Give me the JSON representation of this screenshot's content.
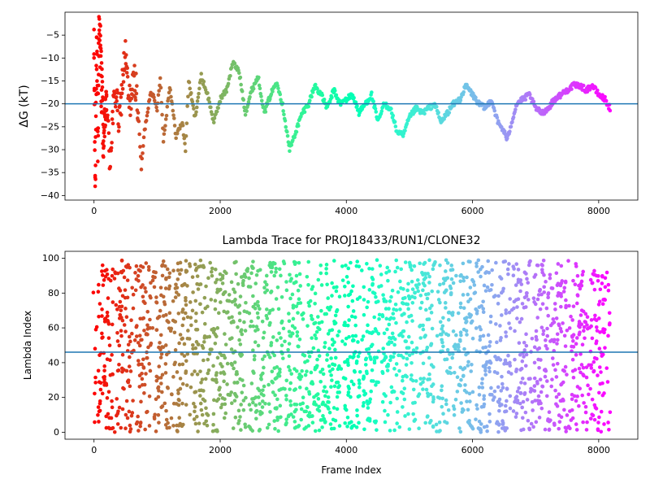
{
  "chart_data": [
    {
      "type": "scatter",
      "title": "",
      "xlabel": "",
      "ylabel": "ΔG (kT)",
      "xlim": [
        -460,
        8620
      ],
      "ylim": [
        -41,
        0
      ],
      "xticks": [
        0,
        2000,
        4000,
        6000,
        8000
      ],
      "xtick_labels": [
        "0",
        "2000",
        "4000",
        "6000",
        "8000"
      ],
      "yticks": [
        -5,
        -10,
        -15,
        -20,
        -25,
        -30,
        -35,
        -40
      ],
      "ytick_labels": [
        "−5",
        "−10",
        "−15",
        "−20",
        "−25",
        "−30",
        "−35",
        "−40"
      ],
      "reference_line_y": -20,
      "reference_line_color": "#1f77b4",
      "colormap": "rainbow (color by frame index)",
      "grid": false,
      "trace_x": [
        0,
        20,
        40,
        60,
        80,
        100,
        150,
        200,
        250,
        300,
        350,
        400,
        450,
        500,
        550,
        600,
        650,
        700,
        750,
        800,
        900,
        1000,
        1050,
        1100,
        1200,
        1300,
        1400,
        1450,
        1500,
        1600,
        1700,
        1800,
        1900,
        2000,
        2100,
        2200,
        2300,
        2400,
        2500,
        2600,
        2700,
        2800,
        2900,
        3000,
        3100,
        3200,
        3300,
        3400,
        3500,
        3600,
        3700,
        3800,
        3900,
        4000,
        4100,
        4200,
        4300,
        4400,
        4500,
        4600,
        4700,
        4800,
        4900,
        5000,
        5100,
        5200,
        5300,
        5400,
        5500,
        5600,
        5700,
        5800,
        5900,
        6000,
        6100,
        6200,
        6300,
        6400,
        6500,
        6550,
        6600,
        6700,
        6800,
        6900,
        7000,
        7100,
        7200,
        7300,
        7400,
        7500,
        7600,
        7700,
        7800,
        7900,
        8000,
        8100,
        8180
      ],
      "trace_y": [
        -10,
        -38,
        -5,
        -30,
        -1,
        -8,
        -28,
        -19,
        -33,
        -22,
        -17,
        -25,
        -15,
        -9,
        -20,
        -18,
        -14,
        -22,
        -34,
        -26,
        -17,
        -21,
        -14,
        -28,
        -16,
        -27,
        -24,
        -30,
        -15,
        -23,
        -14,
        -18,
        -24,
        -19,
        -17,
        -11,
        -13,
        -22,
        -17,
        -14,
        -22,
        -18,
        -15,
        -21,
        -30,
        -26,
        -22,
        -20,
        -16,
        -18,
        -21,
        -17,
        -20,
        -19,
        -18,
        -22,
        -20,
        -18,
        -24,
        -20,
        -21,
        -26,
        -27,
        -23,
        -21,
        -22,
        -21,
        -20,
        -24,
        -22,
        -20,
        -19,
        -16,
        -18,
        -20,
        -21,
        -19,
        -24,
        -26,
        -28,
        -25,
        -20,
        -19,
        -18,
        -21,
        -22,
        -21,
        -19,
        -18,
        -17,
        -16,
        -16,
        -17,
        -16,
        -18,
        -19,
        -21
      ]
    },
    {
      "type": "scatter",
      "title": "Lambda Trace for PROJ18433/RUN1/CLONE32",
      "xlabel": "Frame Index",
      "ylabel": "Lambda Index",
      "xlim": [
        -460,
        8620
      ],
      "ylim": [
        -4,
        104
      ],
      "xticks": [
        0,
        2000,
        4000,
        6000,
        8000
      ],
      "xtick_labels": [
        "0",
        "2000",
        "4000",
        "6000",
        "8000"
      ],
      "yticks": [
        0,
        20,
        40,
        60,
        80,
        100
      ],
      "ytick_labels": [
        "0",
        "20",
        "40",
        "60",
        "80",
        "100"
      ],
      "reference_line_y": 46,
      "reference_line_color": "#1f77b4",
      "colormap": "rainbow (color by frame index)",
      "grid": false,
      "n_points_approx": 8200,
      "lambda_range": [
        0,
        99
      ]
    }
  ]
}
